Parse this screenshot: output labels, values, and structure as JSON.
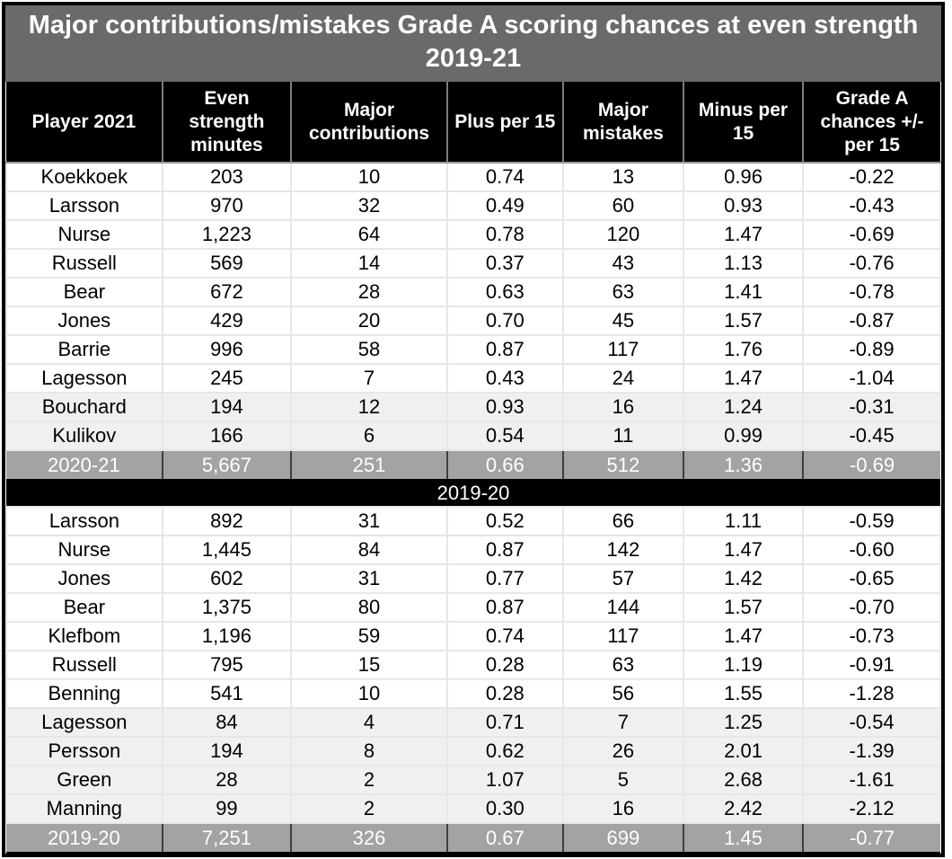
{
  "chart_data": {
    "type": "table",
    "title": "Major contributions/mistakes Grade A scoring chances at even strength 2019-21",
    "columns": [
      "Player 2021",
      "Even strength minutes",
      "Major contributions",
      "Plus per 15",
      "Major mistakes",
      "Minus per 15",
      "Grade A chances +/- per 15"
    ],
    "sections": [
      {
        "rows": [
          [
            "Koekkoek",
            "203",
            "10",
            "0.74",
            "13",
            "0.96",
            "-0.22"
          ],
          [
            "Larsson",
            "970",
            "32",
            "0.49",
            "60",
            "0.93",
            "-0.43"
          ],
          [
            "Nurse",
            "1,223",
            "64",
            "0.78",
            "120",
            "1.47",
            "-0.69"
          ],
          [
            "Russell",
            "569",
            "14",
            "0.37",
            "43",
            "1.13",
            "-0.76"
          ],
          [
            "Bear",
            "672",
            "28",
            "0.63",
            "63",
            "1.41",
            "-0.78"
          ],
          [
            "Jones",
            "429",
            "20",
            "0.70",
            "45",
            "1.57",
            "-0.87"
          ],
          [
            "Barrie",
            "996",
            "58",
            "0.87",
            "117",
            "1.76",
            "-0.89"
          ],
          [
            "Lagesson",
            "245",
            "7",
            "0.43",
            "24",
            "1.47",
            "-1.04"
          ],
          [
            "Bouchard",
            "194",
            "12",
            "0.93",
            "16",
            "1.24",
            "-0.31"
          ],
          [
            "Kulikov",
            "166",
            "6",
            "0.54",
            "11",
            "0.99",
            "-0.45"
          ]
        ],
        "shaded_rows": [
          8,
          9
        ],
        "summary": [
          "2020-21",
          "5,667",
          "251",
          "0.66",
          "512",
          "1.36",
          "-0.69"
        ]
      },
      {
        "divider_label": "2019-20",
        "rows": [
          [
            "Larsson",
            "892",
            "31",
            "0.52",
            "66",
            "1.11",
            "-0.59"
          ],
          [
            "Nurse",
            "1,445",
            "84",
            "0.87",
            "142",
            "1.47",
            "-0.60"
          ],
          [
            "Jones",
            "602",
            "31",
            "0.77",
            "57",
            "1.42",
            "-0.65"
          ],
          [
            "Bear",
            "1,375",
            "80",
            "0.87",
            "144",
            "1.57",
            "-0.70"
          ],
          [
            "Klefbom",
            "1,196",
            "59",
            "0.74",
            "117",
            "1.47",
            "-0.73"
          ],
          [
            "Russell",
            "795",
            "15",
            "0.28",
            "63",
            "1.19",
            "-0.91"
          ],
          [
            "Benning",
            "541",
            "10",
            "0.28",
            "56",
            "1.55",
            "-1.28"
          ],
          [
            "Lagesson",
            "84",
            "4",
            "0.71",
            "7",
            "1.25",
            "-0.54"
          ],
          [
            "Persson",
            "194",
            "8",
            "0.62",
            "26",
            "2.01",
            "-1.39"
          ],
          [
            "Green",
            "28",
            "2",
            "1.07",
            "5",
            "2.68",
            "-1.61"
          ],
          [
            "Manning",
            "99",
            "2",
            "0.30",
            "16",
            "2.42",
            "-2.12"
          ]
        ],
        "shaded_rows": [
          7,
          8,
          9,
          10
        ],
        "summary": [
          "2019-20",
          "7,251",
          "326",
          "0.67",
          "699",
          "1.45",
          "-0.77"
        ]
      }
    ],
    "colors": {
      "title_bar_bg": "#6a6a6a",
      "header_bg": "#000000",
      "summary_row_bg": "#a3a3a3",
      "shaded_row_bg": "#f0f0f0",
      "divider_row_bg": "#000000",
      "grid_line": "#e7e7e7",
      "text_light": "#ffffff",
      "text_dark": "#000000"
    }
  }
}
